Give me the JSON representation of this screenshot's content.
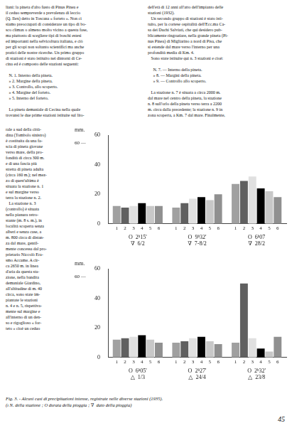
{
  "title": "Fig. 3. - Alcuni casi di precipitazioni intense, registrate nelle diverse stazioni (1935).\n(ı N. della stazione ; O durata della pioggia ; ∇  dato della pioggia)",
  "annotations": [
    "liani: la pineta d'alto fusto di Pinus Pinea e\nil ceduo sempreverde a prevalenza di leccio\n(Q. Ilex) detto in Toscana « forteto ». Non ci\nsiamo preoccupati di considerare un tipo di bo-\nsco climax o almeno molto vicino a questa fase,\nma piuttosto di scegliere tipi di boschi estesi\ned importanti nella selvicoltura italiana, e ciò\nper gli scopi non soltanto scientifici ma anche\npratici delle nostre ricerche. Un primo gruppo\ndi stazioni è stato istituito nei dintorni di Ce-\ncina ed è composto delle stazioni seguenti:\n\n   N. 1. Interno della pineta.\n   » 2. Margine della pineta.\n   » 3. Controllo, allo scoperto.\n   » 4. Margine del forteto.\n   » 5. Interno del forteto.\n\n   La pineta demaniale di Cecina nella quale\ntrovansi le due prime stazioni istituite sul lito-",
    "dell'età di 12 anni all'atto dell'impianto delle\nstazioni (1932).\n   Un secondo gruppo di stazioni è stato isti-\ntuito, per la cortese ospitalità dell'Ecc.ma Ca-\nsa dei Duchi Salviati, che qui desidero pub-\nblicamente ringraziare, nella grande pineta (Pi-\nnus Pinea) di Migliarino a nord di Pisa, che\nsi estende dal mare verso l'interno per una\nprofondità media di Km. 4.\n   Sono state istituite qui n. 3 stazioni e cioè:\n\n     N. 7. — Interno della pineta.\n     » 8. — Margini della pineta.\n     » 9. — Controllo allo scoperto.\n\n   La stazione n. 7 è situata a circa 2000 m.\ndal mare nel centro della pineta, la stazione\nn. 8 sull'orlo della pineta verso terra a 2200\nm. circa dalla precedente; la stazione n. 9 in\nzona scoperta, a Km. 7 dal mare. Finalmente,",
    "rale a sud della città-\ndina (Tombolo sinistro)\nè costituita da una fa-\nscia di pineta giovane\nverso mare, della pro-\nfondità di circa 300 m.\ne di una fascia più\nstretta di pineta adulta\n(circa 160 m.); nel mez-\nzo di quest'ultima è\nsituata la stazione n. 1\ne sul margine verso\nterra la stazione n. 2.\n   La stazione n. 3\n(controllo) è situata\nnella pianura retro-\nstante (m. 8 s. m.), in\nlocalità scoperta senza\nalberi e senza case, a\nm. 800 circa di distan-\nza dal mare, gentil-\nmente concessa dal pro-\nprietario Niccolò Era-\nsmo Accame. A cir-\nca 2650 m. in linea\nd'aria da questa sta-\nzione, nella bandita\ndemaniale Giardino,\nall'altitudine di m. 40\ncirca, sono state im-\npiantate le stazioni\nn. 4 e n. 5, rispettiva-\nmente sul margine e\nall'interno di un den-\nso e rigoglioso « for-\nteto » cioè un ceduo",
    "45"
  ],
  "chart_data": [
    {
      "type": "bar",
      "ylabel": "mm.",
      "annotations": [
        "60 —"
      ],
      "categories": [
        "O  2ʰ15'\n∇  6/2",
        "O  9ʰ32'\n∇  7-8/2",
        "O  6ʰ07\n∇  28/2"
      ],
      "series": [
        {
          "name": "1",
          "color": "#a0a0a0",
          "values": [
            12,
            11,
            27
          ]
        },
        {
          "name": "2",
          "color": "#606060",
          "values": [
            11,
            14,
            29
          ]
        },
        {
          "name": "3",
          "color": "#e0e0e0",
          "values": [
            12,
            17,
            32
          ]
        },
        {
          "name": "4",
          "color": "#000000",
          "values": [
            14,
            18,
            24
          ]
        },
        {
          "name": "5",
          "color": "#c8c8c8",
          "values": [
            12,
            16,
            22
          ]
        },
        {
          "name": "6",
          "color": "#909090",
          "values": [
            12,
            20,
            18
          ]
        }
      ],
      "ylim": [
        0,
        60
      ],
      "yticks": [
        0,
        20,
        40,
        60
      ],
      "grid": false
    },
    {
      "type": "bar",
      "ylabel": "mm.",
      "annotations": [
        "60 —"
      ],
      "categories": [
        "O  6ʰ05'\n△  1/3",
        "O  2ʰ27'\n△  24/4",
        "O  2ʰ32'\n△  23/8"
      ],
      "series": [
        {
          "name": "1",
          "color": "#a0a0a0",
          "values": [
            12,
            10,
            10
          ]
        },
        {
          "name": "2",
          "color": "#606060",
          "values": [
            13,
            11,
            50
          ]
        },
        {
          "name": "3",
          "color": "#e0e0e0",
          "values": [
            14,
            13,
            13
          ]
        },
        {
          "name": "4",
          "color": "#000000",
          "values": [
            15,
            14,
            6
          ]
        },
        {
          "name": "5",
          "color": "#c8c8c8",
          "values": [
            12,
            11,
            4
          ]
        },
        {
          "name": "6",
          "color": "#909090",
          "values": [
            10,
            9,
            14
          ]
        }
      ],
      "ylim": [
        0,
        60
      ],
      "yticks": [
        0,
        20,
        40,
        60
      ],
      "grid": false
    }
  ]
}
